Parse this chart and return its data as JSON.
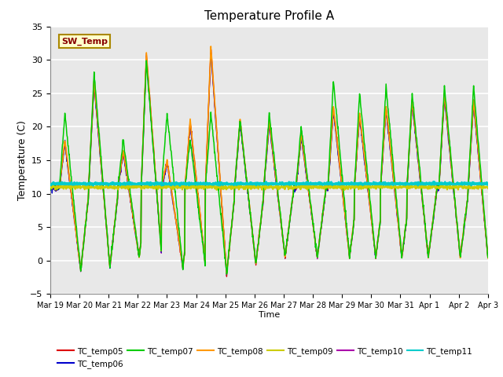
{
  "title": "Temperature Profile A",
  "xlabel": "Time",
  "ylabel": "Temperature (C)",
  "ylim": [
    -5,
    35
  ],
  "n_days": 15,
  "sw_temp_value": 11.5,
  "x_tick_labels": [
    "Mar 19",
    "Mar 20",
    "Mar 21",
    "Mar 22",
    "Mar 23",
    "Mar 24",
    "Mar 25",
    "Mar 26",
    "Mar 27",
    "Mar 28",
    "Mar 29",
    "Mar 30",
    "Mar 31",
    "Apr 1",
    "Apr 2",
    "Apr 3"
  ],
  "series_colors": {
    "TC_temp05": "#dd0000",
    "TC_temp06": "#0000cc",
    "TC_temp07": "#00cc00",
    "TC_temp08": "#ff9900",
    "TC_temp09": "#cccc00",
    "TC_temp10": "#aa00aa",
    "TC_temp11": "#00cccc"
  },
  "background_color": "#e8e8e8",
  "grid_color": "#ffffff",
  "legend_box_facecolor": "#ffffcc",
  "legend_box_edgecolor": "#aa8800",
  "sw_temp_text_color": "#880000",
  "spike_peaks": [
    0.5,
    1.5,
    2.5,
    3.3,
    4.0,
    4.8,
    5.5,
    6.5,
    7.5,
    8.6,
    9.7,
    10.6,
    11.5,
    12.4,
    13.5,
    14.5
  ],
  "spike_heights_base": [
    7.0,
    16.0,
    5.5,
    20.0,
    4.0,
    10.0,
    21.0,
    10.0,
    10.0,
    8.0,
    12.0,
    11.0,
    12.0,
    13.0,
    14.0,
    13.0
  ],
  "spike_heights_green": [
    11.0,
    17.0,
    7.0,
    19.0,
    11.0,
    7.0,
    11.0,
    10.0,
    11.0,
    9.0,
    16.0,
    14.0,
    15.0,
    14.0,
    15.0,
    15.0
  ],
  "trough_depths": [
    -1.5,
    -1.0,
    0.5,
    -1.0,
    -1.0,
    -2.0,
    -2.0,
    -0.5,
    0.5,
    0.5,
    0.5,
    0.5,
    0.5,
    0.5,
    0.5,
    0.5
  ],
  "n_per_day": 96
}
